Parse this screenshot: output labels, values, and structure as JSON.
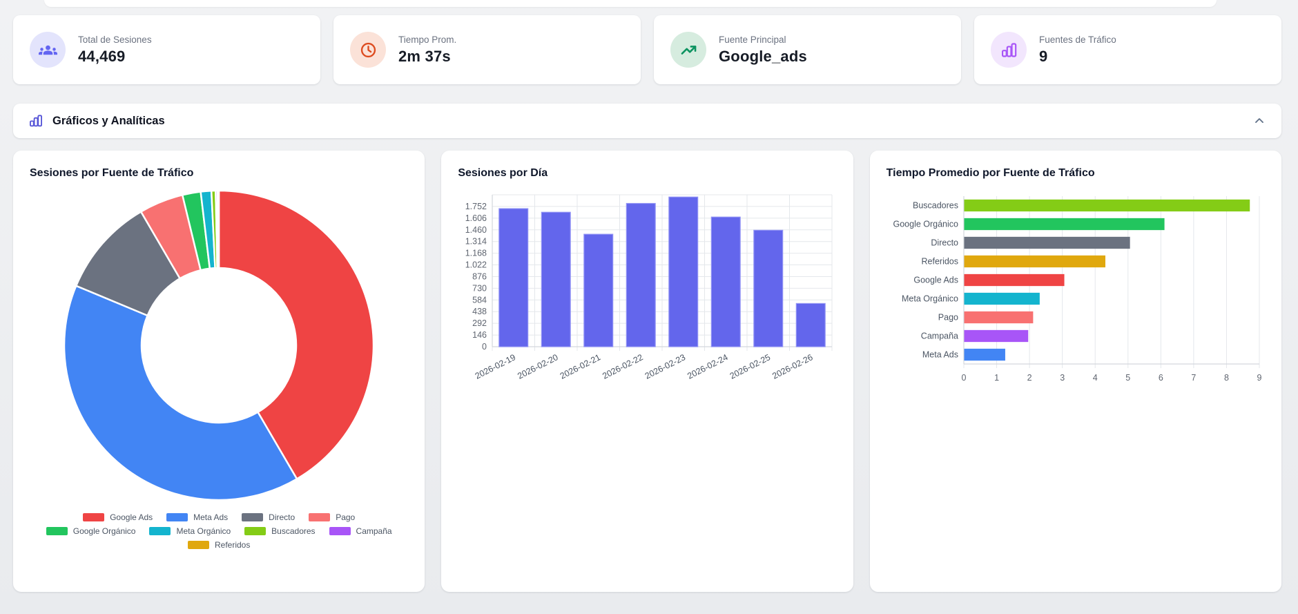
{
  "stats": [
    {
      "label": "Total de Sesiones",
      "value": "44,469",
      "icon": "users-icon",
      "color": "#6365f1",
      "bg": "#e3e4fc"
    },
    {
      "label": "Tiempo Prom.",
      "value": "2m 37s",
      "icon": "clock-icon",
      "color": "#dd4b1f",
      "bg": "#fbe2d8"
    },
    {
      "label": "Fuente Principal",
      "value": "Google_ads",
      "icon": "trending-up-icon",
      "color": "#0c9360",
      "bg": "#d6ecdf"
    },
    {
      "label": "Fuentes de Tráfico",
      "value": "9",
      "icon": "bar-chart-icon",
      "color": "#a855f7",
      "bg": "#f2e6fd"
    }
  ],
  "section": {
    "title": "Gráficos y Analíticas"
  },
  "chart_data": [
    {
      "type": "pie",
      "title": "Sesiones por Fuente de Tráfico",
      "labels": [
        "Google Ads",
        "Meta Ads",
        "Directo",
        "Pago",
        "Google Orgánico",
        "Meta Orgánico",
        "Buscadores",
        "Campaña",
        "Referidos"
      ],
      "values": [
        18493,
        17655,
        4585,
        2052,
        849,
        492,
        196,
        88,
        59
      ],
      "colors": [
        "#ef4444",
        "#4285f4",
        "#6b7280",
        "#f87171",
        "#22c55e",
        "#14b4ce",
        "#84cc16",
        "#a855f7",
        "#e0a80e"
      ],
      "total": 44469,
      "cutout": "50%",
      "legend_position": "bottom"
    },
    {
      "type": "bar",
      "title": "Sesiones por Día",
      "categories": [
        "2026-02-19",
        "2026-02-20",
        "2026-02-21",
        "2026-02-22",
        "2026-02-23",
        "2026-02-24",
        "2026-02-25",
        "2026-02-26"
      ],
      "values": [
        1725,
        1680,
        1405,
        1790,
        1870,
        1620,
        1455,
        540
      ],
      "bar_color": "#6366ec",
      "bar_border_color": "#9193f5",
      "ylim": [
        0,
        1898
      ],
      "ytick_values": [
        0,
        146,
        292,
        438,
        584,
        730,
        876,
        1022,
        1168,
        1314,
        1460,
        1606,
        1752
      ],
      "ytick_labels": [
        "0",
        "146",
        "292",
        "438",
        "584",
        "730",
        "876",
        "1.022",
        "1.168",
        "1.314",
        "1.460",
        "1.606",
        "1.752"
      ],
      "grid": true,
      "xlabel": "",
      "ylabel": ""
    },
    {
      "type": "bar-horizontal",
      "title": "Tiempo Promedio por Fuente de Tráfico",
      "categories": [
        "Buscadores",
        "Google Orgánico",
        "Directo",
        "Referidos",
        "Google Ads",
        "Meta Orgánico",
        "Pago",
        "Campaña",
        "Meta Ads"
      ],
      "values": [
        8.7,
        6.1,
        5.05,
        4.3,
        3.05,
        2.3,
        2.1,
        1.95,
        1.25
      ],
      "colors": [
        "#84cc16",
        "#22c55e",
        "#6b7280",
        "#e0a80e",
        "#ef4444",
        "#14b4ce",
        "#f87171",
        "#a855f7",
        "#4285f4"
      ],
      "xlim": [
        0,
        9
      ],
      "xtick_values": [
        0,
        1,
        2,
        3,
        4,
        5,
        6,
        7,
        8,
        9
      ],
      "xtick_labels": [
        "0",
        "1",
        "2",
        "3",
        "4",
        "5",
        "6",
        "7",
        "8",
        "9"
      ],
      "grid": true,
      "xlabel": "",
      "ylabel": ""
    }
  ]
}
